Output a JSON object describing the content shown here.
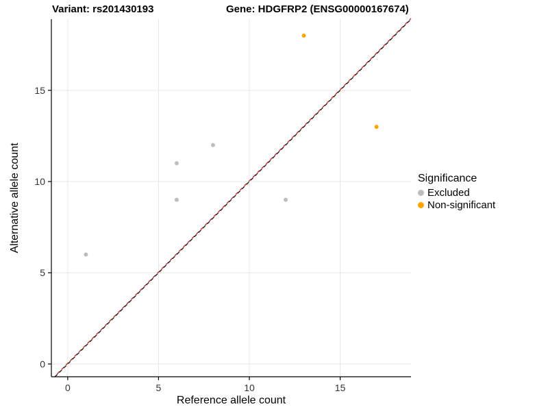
{
  "titles": {
    "variant": "Variant: rs201430193",
    "gene": "Gene: HDGFRP2 (ENSG00000167674)"
  },
  "chart_data": {
    "type": "scatter",
    "xlabel": "Reference allele count",
    "ylabel": "Alternative allele count",
    "xlim": [
      -0.9,
      18.9
    ],
    "ylim": [
      -0.7,
      18.9
    ],
    "xticks": [
      0,
      5,
      10,
      15
    ],
    "yticks": [
      0,
      5,
      10,
      15
    ],
    "grid": true,
    "legend": {
      "title": "Significance",
      "position": "right",
      "entries": [
        {
          "label": "Excluded",
          "color": "#bdbdbd"
        },
        {
          "label": "Non-significant",
          "color": "#FFA500"
        }
      ]
    },
    "series": [
      {
        "name": "Excluded",
        "color": "#bdbdbd",
        "points": [
          [
            1,
            6
          ],
          [
            6,
            9
          ],
          [
            6,
            11
          ],
          [
            8,
            12
          ],
          [
            12,
            9
          ]
        ]
      },
      {
        "name": "Non-significant",
        "color": "#FFA500",
        "points": [
          [
            13,
            18
          ],
          [
            17,
            13
          ]
        ]
      }
    ],
    "identity_line": {
      "style": "dashed",
      "equation": "y = x",
      "colors": [
        "#1a1a1a",
        "#cc2222"
      ]
    },
    "colors": {
      "grid": "#e7e7e7",
      "axis": "#000000",
      "tick_label": "#333333",
      "background": "#ffffff"
    }
  }
}
